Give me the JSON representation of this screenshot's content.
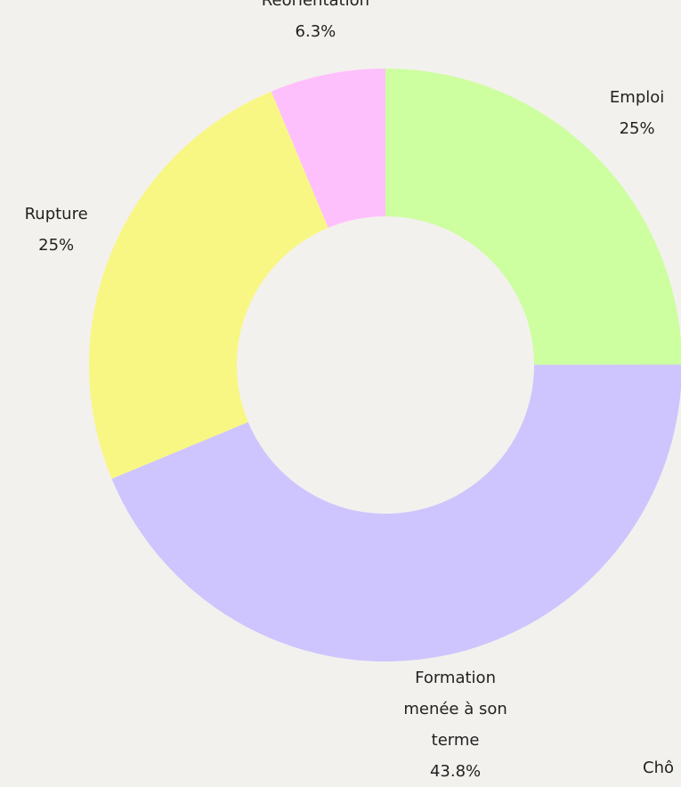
{
  "chart_data": {
    "type": "donut",
    "categories": [
      "Emploi",
      "Formation menée à son terme",
      "Rupture",
      "Réorientation"
    ],
    "values": [
      25,
      43.8,
      25,
      6.3
    ],
    "value_labels": [
      "25%",
      "43.8%",
      "25%",
      "6.3%"
    ],
    "colors": [
      "#cdfea0",
      "#cec5fe",
      "#f8f784",
      "#fec0fd"
    ],
    "annotations": [
      "Chô"
    ]
  }
}
